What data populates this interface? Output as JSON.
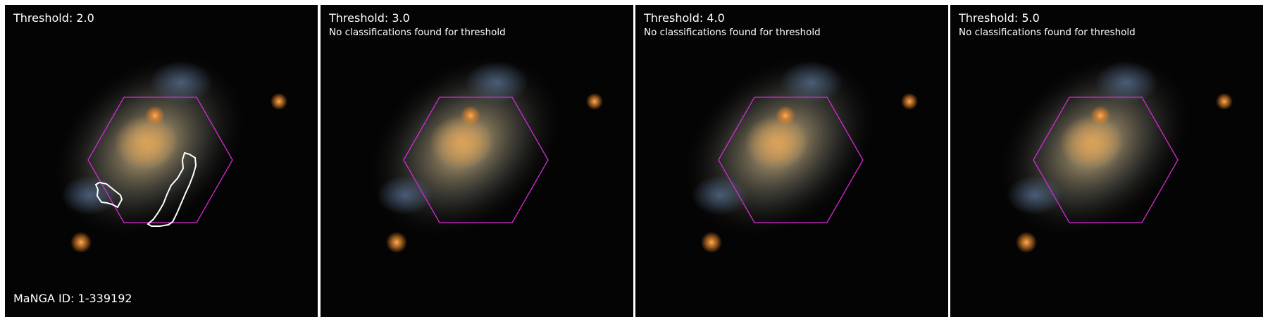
{
  "panels": [
    {
      "title": "Threshold: 2.0",
      "subtitle": "",
      "footer": "MaNGA ID: 1-339192",
      "contours": true
    },
    {
      "title": "Threshold: 3.0",
      "subtitle": "No classifications found for threshold",
      "footer": "",
      "contours": false
    },
    {
      "title": "Threshold: 4.0",
      "subtitle": "No classifications found for threshold",
      "footer": "",
      "contours": false
    },
    {
      "title": "Threshold: 5.0",
      "subtitle": "No classifications found for threshold",
      "footer": "",
      "contours": false
    }
  ],
  "colors": {
    "background": "#050404",
    "hexagon": "#d42bd4",
    "contour": "#ffffff",
    "galaxy_core": "#d9a25a",
    "star": "#e8862a"
  }
}
